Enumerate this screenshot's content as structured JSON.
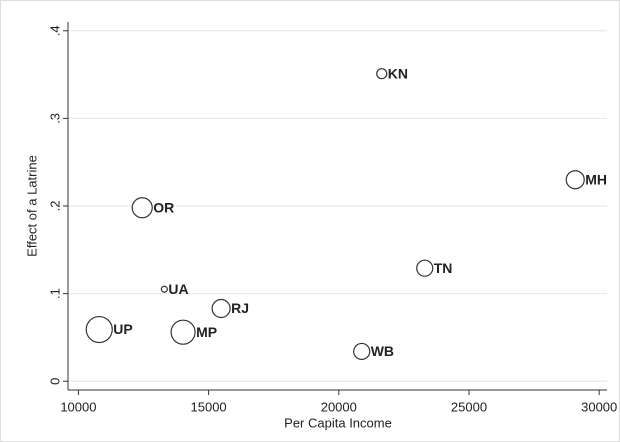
{
  "chart_data": {
    "type": "scatter",
    "x_label": "Per Capita Income",
    "y_label": "Effect of a Latrine",
    "labels": [
      "UP",
      "OR",
      "UA",
      "MP",
      "RJ",
      "KN",
      "WB",
      "TN",
      "MH"
    ],
    "x": [
      10800,
      12450,
      13300,
      14020,
      15480,
      21650,
      20880,
      23300,
      29080
    ],
    "values": [
      0.059,
      0.198,
      0.105,
      0.056,
      0.083,
      0.351,
      0.034,
      0.129,
      0.23
    ],
    "sizes": [
      169,
      100,
      9,
      144,
      81,
      25,
      64,
      64,
      81
    ],
    "xlim": [
      9600,
      30300
    ],
    "ylim": [
      -0.01,
      0.41
    ],
    "xticks": [
      10000,
      15000,
      20000,
      25000,
      30000
    ],
    "yticks": [
      0,
      {
        "value": 0.1,
        "label": ".1"
      },
      {
        "value": 0.2,
        "label": ".2"
      },
      {
        "value": 0.3,
        "label": ".3"
      },
      {
        "value": 0.4,
        "label": ".4"
      }
    ],
    "grid": true,
    "color": "#333333"
  }
}
